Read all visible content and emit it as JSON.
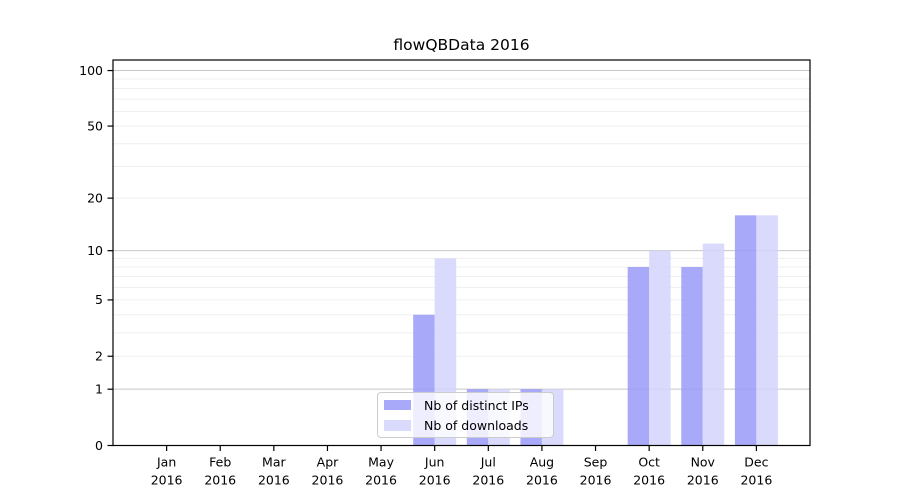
{
  "chart_data": {
    "type": "bar",
    "title": "flowQBData 2016",
    "categories": [
      "Jan",
      "Feb",
      "Mar",
      "Apr",
      "May",
      "Jun",
      "Jul",
      "Aug",
      "Sep",
      "Oct",
      "Nov",
      "Dec"
    ],
    "category_year": "2016",
    "series": [
      {
        "name": "Nb of distinct IPs",
        "color": "#9a9af9",
        "values": [
          0,
          0,
          0,
          0,
          0,
          4,
          1,
          1,
          0,
          8,
          8,
          16
        ]
      },
      {
        "name": "Nb of downloads",
        "color": "#d4d5fb",
        "values": [
          0,
          0,
          0,
          0,
          0,
          9,
          1,
          1,
          0,
          10,
          11,
          16
        ]
      }
    ],
    "xlabel": "",
    "ylabel": "",
    "y_axis": {
      "scale": "log1p",
      "ticks": [
        0,
        1,
        2,
        5,
        10,
        20,
        50,
        100
      ],
      "major_gridlines": [
        1,
        10,
        100
      ],
      "minor_gridlines": [
        2,
        3,
        4,
        5,
        6,
        7,
        8,
        9,
        20,
        30,
        40,
        50,
        60,
        70,
        80,
        90
      ],
      "min": 0,
      "max": 114
    },
    "grid": true,
    "legend_position": "lower center",
    "colors": {
      "background": "#ffffff",
      "major_grid": "#c6c6c6",
      "minor_grid": "#efefef",
      "spine": "#000000",
      "tick_text": "#000000",
      "legend_border": "#cccccc",
      "bar_fill_opacity": 0.85
    }
  }
}
